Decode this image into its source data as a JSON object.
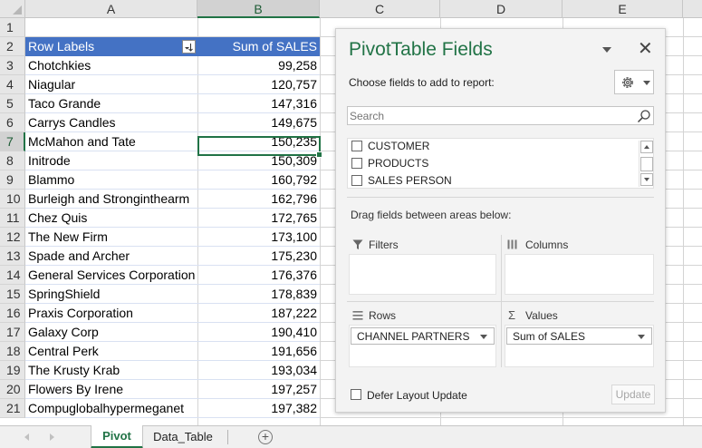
{
  "sheet": {
    "columns": [
      "A",
      "B",
      "C",
      "D",
      "E"
    ],
    "rows": [
      "1",
      "2",
      "3",
      "4",
      "5",
      "6",
      "7",
      "8",
      "9",
      "10",
      "11",
      "12",
      "13",
      "14",
      "15",
      "16",
      "17",
      "18",
      "19",
      "20",
      "21"
    ],
    "selected_column": "B",
    "selected_row": "7"
  },
  "pivot": {
    "header_label": "Row Labels",
    "header_value": "Sum of SALES",
    "rows": [
      {
        "label": "Chotchkies",
        "value": "99,258"
      },
      {
        "label": "Niagular",
        "value": "120,757"
      },
      {
        "label": "Taco Grande",
        "value": "147,316"
      },
      {
        "label": "Carrys Candles",
        "value": "149,675"
      },
      {
        "label": "McMahon and Tate",
        "value": "150,235"
      },
      {
        "label": "Initrode",
        "value": "150,309"
      },
      {
        "label": "Blammo",
        "value": "160,792"
      },
      {
        "label": "Burleigh and Stronginthearm",
        "value": "162,796"
      },
      {
        "label": "Chez Quis",
        "value": "172,765"
      },
      {
        "label": "The New Firm",
        "value": "173,100"
      },
      {
        "label": "Spade and Archer",
        "value": "175,230"
      },
      {
        "label": "General Services Corporation",
        "value": "176,376"
      },
      {
        "label": "SpringShield",
        "value": "178,839"
      },
      {
        "label": "Praxis Corporation",
        "value": "187,222"
      },
      {
        "label": "Galaxy Corp",
        "value": "190,410"
      },
      {
        "label": "Central Perk",
        "value": "191,656"
      },
      {
        "label": "The Krusty Krab",
        "value": "193,034"
      },
      {
        "label": "Flowers By Irene",
        "value": "197,257"
      },
      {
        "label": "Compuglobalhypermeganet",
        "value": "197,382"
      }
    ]
  },
  "panel": {
    "title": "PivotTable Fields",
    "close_glyph": "✕",
    "choose_label": "Choose fields to add to report:",
    "search_placeholder": "Search",
    "fields": [
      "CUSTOMER",
      "PRODUCTS",
      "SALES PERSON"
    ],
    "drag_label": "Drag fields between areas below:",
    "areas": {
      "filters": "Filters",
      "columns": "Columns",
      "rows": "Rows",
      "values": "Values"
    },
    "rows_field": "CHANNEL PARTNERS",
    "values_field": "Sum of SALES",
    "defer_label": "Defer Layout Update",
    "update_label": "Update"
  },
  "tabs": {
    "items": [
      "Pivot",
      "Data_Table"
    ],
    "active": "Pivot",
    "add_glyph": "+"
  },
  "colors": {
    "accent": "#217346",
    "pivot_header": "#4472c4"
  }
}
